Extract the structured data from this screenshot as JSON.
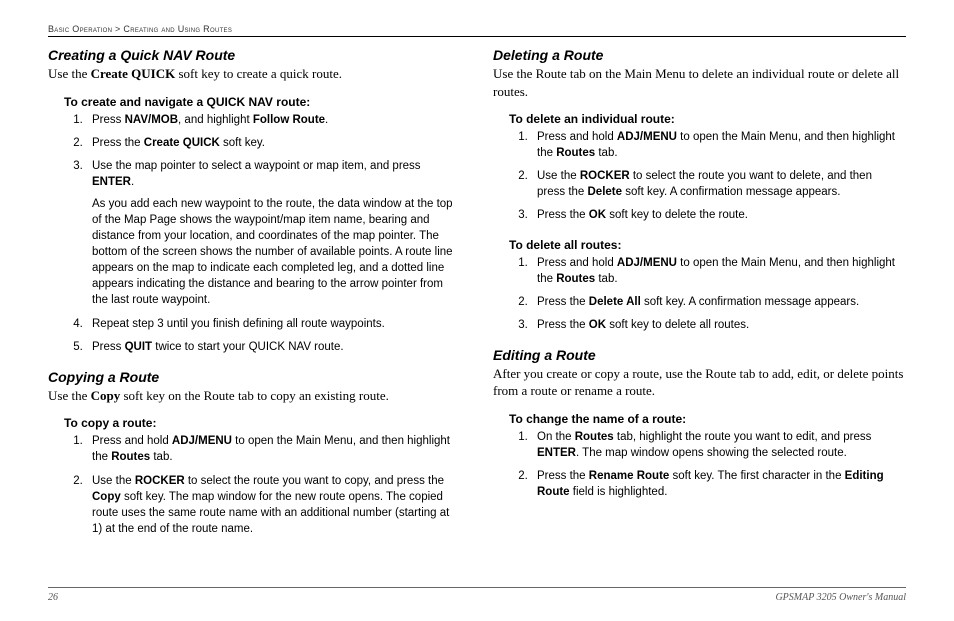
{
  "breadcrumb": {
    "a": "Basic Operation",
    "sep": ">",
    "b": "Creating and Using Routes"
  },
  "left": {
    "s1": {
      "title": "Creating a Quick NAV Route",
      "intro_a": "Use the ",
      "intro_b": "Create QUICK",
      "intro_c": " soft key to create a quick route.",
      "sub": "To create and navigate a QUICK NAV route:",
      "li1a": "Press ",
      "li1b": "NAV/MOB",
      "li1c": ", and highlight ",
      "li1d": "Follow Route",
      "li1e": ".",
      "li2a": "Press the ",
      "li2b": "Create QUICK",
      "li2c": " soft key.",
      "li3a": "Use the map pointer to select a waypoint or map item, and press ",
      "li3b": "ENTER",
      "li3c": ".",
      "li3cont": "As you add each new waypoint to the route, the data window at the top of the Map Page shows the waypoint/map item name, bearing and distance from your location, and coordinates of the map pointer. The bottom of the screen shows the number of available points. A route line appears on the map to indicate each completed leg, and a dotted line appears indicating the distance and bearing to the arrow pointer from the last route waypoint.",
      "li4": "Repeat step 3 until you finish defining all route waypoints.",
      "li5a": "Press ",
      "li5b": "QUIT",
      "li5c": " twice to start your QUICK NAV route."
    },
    "s2": {
      "title": "Copying a Route",
      "intro_a": "Use the ",
      "intro_b": "Copy",
      "intro_c": " soft key on the Route tab to copy an existing route.",
      "sub": "To copy a route:",
      "li1a": "Press and hold ",
      "li1b": "ADJ/MENU",
      "li1c": " to open the Main Menu, and then highlight the ",
      "li1d": "Routes",
      "li1e": " tab.",
      "li2a": "Use the ",
      "li2b": "ROCKER",
      "li2c": " to select the route you want to copy, and press the ",
      "li2d": "Copy",
      "li2e": " soft key. The map window for the new route opens. The copied route uses the same route name with an additional number (starting at 1) at the end of the route name."
    }
  },
  "right": {
    "s1": {
      "title": "Deleting a Route",
      "intro": "Use the Route tab on the Main Menu to delete an individual route or delete all routes.",
      "subA": "To delete an individual route:",
      "a1a": "Press and hold ",
      "a1b": "ADJ/MENU",
      "a1c": " to open the Main Menu, and then highlight the ",
      "a1d": "Routes",
      "a1e": " tab.",
      "a2a": "Use the ",
      "a2b": "ROCKER",
      "a2c": " to select the route you want to delete, and then press the ",
      "a2d": "Delete",
      "a2e": " soft key. A confirmation message appears.",
      "a3a": "Press the ",
      "a3b": "OK",
      "a3c": " soft key to delete the route.",
      "subB": "To delete all routes:",
      "b1a": "Press and hold ",
      "b1b": "ADJ/MENU",
      "b1c": " to open the Main Menu, and then highlight the ",
      "b1d": "Routes",
      "b1e": " tab.",
      "b2a": "Press the ",
      "b2b": "Delete All",
      "b2c": " soft key. A confirmation message appears.",
      "b3a": "Press the ",
      "b3b": "OK",
      "b3c": " soft key to delete all routes."
    },
    "s2": {
      "title": "Editing a Route",
      "intro": "After you create or copy a route, use the Route tab to add, edit, or delete points from a route or rename a route.",
      "sub": "To change the name of a route:",
      "li1a": "On the ",
      "li1b": "Routes",
      "li1c": " tab, highlight the route you want to edit, and press ",
      "li1d": "ENTER",
      "li1e": ". The map window opens showing the selected route.",
      "li2a": "Press the ",
      "li2b": "Rename Route",
      "li2c": " soft key. The first character in the ",
      "li2d": "Editing Route",
      "li2e": " field is highlighted."
    }
  },
  "footer": {
    "page": "26",
    "doc": "GPSMAP 3205 Owner's Manual"
  }
}
